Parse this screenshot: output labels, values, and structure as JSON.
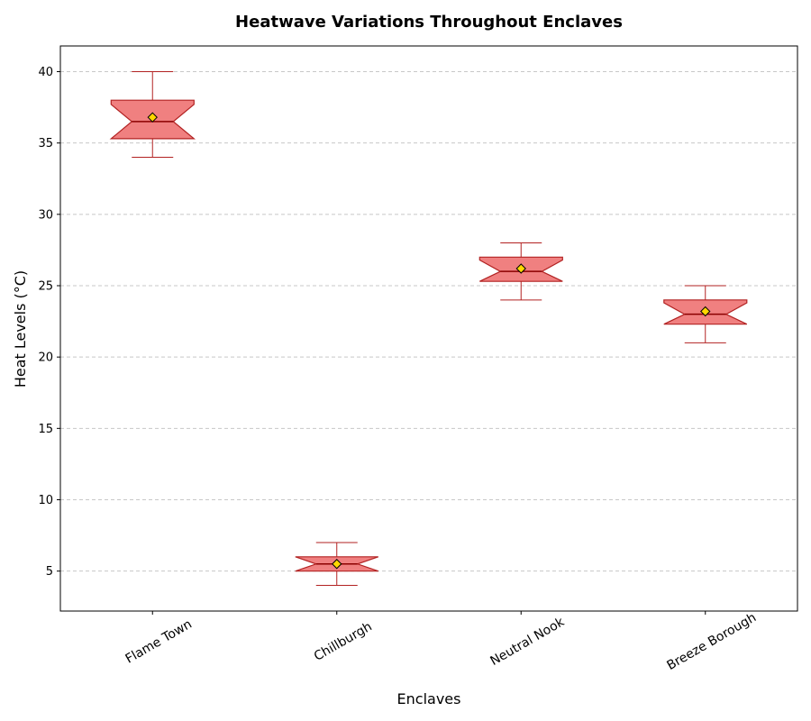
{
  "chart_data": {
    "type": "box",
    "title": "Heatwave Variations Throughout Enclaves",
    "xlabel": "Enclaves",
    "ylabel": "Heat Levels (°C)",
    "ylim": [
      2.2,
      41.8
    ],
    "yticks": [
      5,
      10,
      15,
      20,
      25,
      30,
      35,
      40
    ],
    "grid": "y-dashed",
    "notched": true,
    "colors": {
      "box_fill": "#f08080",
      "box_edge": "#b22222",
      "median": "#8b0000",
      "mean_marker": "#ffd700",
      "grid": "#c8c8c8"
    },
    "categories": [
      "Flame Town",
      "Chillburgh",
      "Neutral Nook",
      "Breeze Borough"
    ],
    "boxes": [
      {
        "label": "Flame Town",
        "whisker_low": 34,
        "q1": 35.3,
        "median": 36.5,
        "q3": 38,
        "whisker_high": 40,
        "mean": 36.8,
        "notch_low": 35.3,
        "notch_high": 37.7
      },
      {
        "label": "Chillburgh",
        "whisker_low": 4,
        "q1": 5,
        "median": 5.5,
        "q3": 6,
        "whisker_high": 7,
        "mean": 5.5,
        "notch_low": 5.0,
        "notch_high": 6.0
      },
      {
        "label": "Neutral Nook",
        "whisker_low": 24,
        "q1": 25.3,
        "median": 26,
        "q3": 27,
        "whisker_high": 28,
        "mean": 26.2,
        "notch_low": 25.3,
        "notch_high": 26.8
      },
      {
        "label": "Breeze Borough",
        "whisker_low": 21,
        "q1": 22.3,
        "median": 23,
        "q3": 24,
        "whisker_high": 25,
        "mean": 23.2,
        "notch_low": 22.3,
        "notch_high": 23.8
      }
    ]
  }
}
